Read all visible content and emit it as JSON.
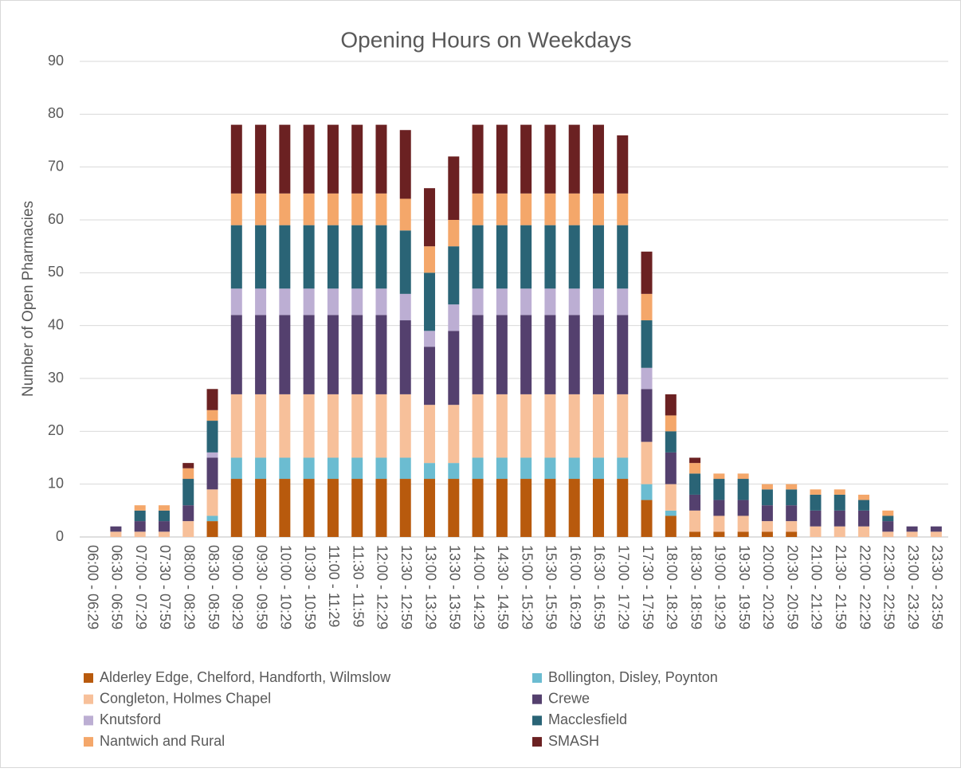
{
  "chart_data": {
    "type": "stacked_bar",
    "title": "Opening Hours on Weekdays",
    "y_label": "Number of Open Pharmacies",
    "categories": [
      "06:00 - 06:29",
      "06:30 - 06:59",
      "07:00 - 07:29",
      "07:30 - 07:59",
      "08:00 - 08:29",
      "08:30 - 08:59",
      "09:00 - 09:29",
      "09:30 - 09:59",
      "10:00 - 10:29",
      "10:30 - 10:59",
      "11:00 - 11:29",
      "11:30 - 11:59",
      "12:00 - 12:29",
      "12:30 - 12:59",
      "13:00 - 13:29",
      "13:30 - 13:59",
      "14:00 - 14:29",
      "14:30 - 14:59",
      "15:00 - 15:29",
      "15:30 - 15:59",
      "16:00 - 16:29",
      "16:30 - 16:59",
      "17:00 - 17:29",
      "17:30 - 17:59",
      "18:00 - 18:29",
      "18:30 - 18:59",
      "19:00 - 19:29",
      "19:30 - 19:59",
      "20:00 - 20:29",
      "20:30 - 20:59",
      "21:00 - 21:29",
      "21:30 - 21:59",
      "22:00 - 22:29",
      "22:30 - 22:59",
      "23:00 - 23:29",
      "23:30 - 23:59"
    ],
    "series": [
      {
        "name": "Alderley Edge, Chelford, Handforth, Wilmslow",
        "color": "#b85a0d",
        "values": [
          0,
          0,
          0,
          0,
          0,
          3,
          11,
          11,
          11,
          11,
          11,
          11,
          11,
          11,
          11,
          11,
          11,
          11,
          11,
          11,
          11,
          11,
          11,
          7,
          4,
          1,
          1,
          1,
          1,
          1,
          0,
          0,
          0,
          0,
          0,
          0
        ]
      },
      {
        "name": "Bollington, Disley, Poynton",
        "color": "#6bbcd1",
        "values": [
          0,
          0,
          0,
          0,
          0,
          1,
          4,
          4,
          4,
          4,
          4,
          4,
          4,
          4,
          3,
          3,
          4,
          4,
          4,
          4,
          4,
          4,
          4,
          3,
          1,
          0,
          0,
          0,
          0,
          0,
          0,
          0,
          0,
          0,
          0,
          0
        ]
      },
      {
        "name": "Congleton, Holmes Chapel",
        "color": "#f7c09a",
        "values": [
          0,
          1,
          1,
          1,
          3,
          5,
          12,
          12,
          12,
          12,
          12,
          12,
          12,
          12,
          11,
          11,
          12,
          12,
          12,
          12,
          12,
          12,
          12,
          8,
          5,
          4,
          3,
          3,
          2,
          2,
          2,
          2,
          2,
          1,
          1,
          1
        ]
      },
      {
        "name": "Crewe",
        "color": "#54406e",
        "values": [
          0,
          1,
          2,
          2,
          3,
          6,
          15,
          15,
          15,
          15,
          15,
          15,
          15,
          14,
          11,
          14,
          15,
          15,
          15,
          15,
          15,
          15,
          15,
          10,
          6,
          3,
          3,
          3,
          3,
          3,
          3,
          3,
          3,
          2,
          1,
          1
        ]
      },
      {
        "name": "Knutsford",
        "color": "#bcaed3",
        "values": [
          0,
          0,
          0,
          0,
          0,
          1,
          5,
          5,
          5,
          5,
          5,
          5,
          5,
          5,
          3,
          5,
          5,
          5,
          5,
          5,
          5,
          5,
          5,
          4,
          0,
          0,
          0,
          0,
          0,
          0,
          0,
          0,
          0,
          0,
          0,
          0
        ]
      },
      {
        "name": "Macclesfield",
        "color": "#2a6476",
        "values": [
          0,
          0,
          2,
          2,
          5,
          6,
          12,
          12,
          12,
          12,
          12,
          12,
          12,
          12,
          11,
          11,
          12,
          12,
          12,
          12,
          12,
          12,
          12,
          9,
          4,
          4,
          4,
          4,
          3,
          3,
          3,
          3,
          2,
          1,
          0,
          0
        ]
      },
      {
        "name": "Nantwich and Rural",
        "color": "#f4a76a",
        "values": [
          0,
          0,
          1,
          1,
          2,
          2,
          6,
          6,
          6,
          6,
          6,
          6,
          6,
          6,
          5,
          5,
          6,
          6,
          6,
          6,
          6,
          6,
          6,
          5,
          3,
          2,
          1,
          1,
          1,
          1,
          1,
          1,
          1,
          1,
          0,
          0
        ]
      },
      {
        "name": "SMASH",
        "color": "#6b2122",
        "values": [
          0,
          0,
          0,
          0,
          1,
          4,
          13,
          13,
          13,
          13,
          13,
          13,
          13,
          13,
          11,
          12,
          13,
          13,
          13,
          13,
          13,
          13,
          11,
          8,
          4,
          1,
          0,
          0,
          0,
          0,
          0,
          0,
          0,
          0,
          0,
          0
        ]
      }
    ],
    "ylim": [
      0,
      90
    ],
    "yticks": [
      0,
      10,
      20,
      30,
      40,
      50,
      60,
      70,
      80,
      90
    ],
    "grid": true
  }
}
